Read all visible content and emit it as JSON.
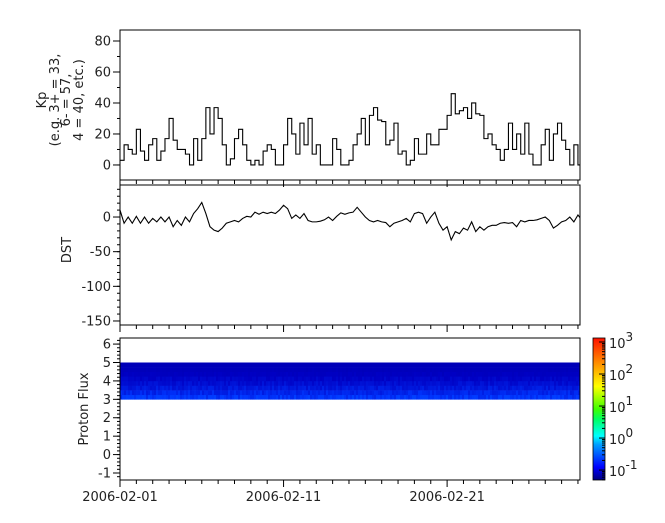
{
  "chart_data": [
    {
      "type": "line",
      "ylabel_lines": [
        "Kp",
        "(e.g. 3+ = 33,",
        "6- = 57,",
        "4 = 40, etc.)"
      ],
      "ylim": [
        -9.7,
        87.1
      ],
      "yticks": [
        0,
        20,
        40,
        60,
        80
      ],
      "series": [
        {
          "values": [
            3,
            13,
            10,
            7,
            23,
            9,
            3,
            13,
            17,
            3,
            9,
            17,
            30,
            16,
            10,
            10,
            7,
            0,
            17,
            3,
            17,
            37,
            20,
            37,
            30,
            13,
            0,
            4,
            17,
            23,
            13,
            3,
            0,
            3,
            0,
            9,
            13,
            10,
            0,
            0,
            13,
            30,
            20,
            7,
            27,
            13,
            30,
            7,
            13,
            0,
            0,
            0,
            17,
            10,
            0,
            0,
            3,
            13,
            20,
            30,
            13,
            32,
            37,
            29,
            28,
            13,
            16,
            27,
            7,
            9,
            0,
            3,
            17,
            7,
            7,
            20,
            13,
            13,
            23,
            23,
            32,
            46,
            33,
            35,
            37,
            30,
            40,
            33,
            32,
            17,
            20,
            13,
            10,
            3,
            10,
            27,
            10,
            20,
            7,
            27,
            7,
            0,
            0,
            13,
            23,
            3,
            20,
            27,
            16,
            10,
            0,
            13,
            0,
            20,
            13,
            30
          ],
          "color": "#000000",
          "style": "step"
        }
      ]
    },
    {
      "type": "line",
      "ylabel": "DST",
      "ylim": [
        -155.8,
        46.2
      ],
      "yticks": [
        0,
        -50,
        -100,
        -150
      ],
      "series": [
        {
          "values": [
            10,
            -9,
            0,
            -9,
            1,
            -9,
            0,
            -9,
            -2,
            -7,
            0,
            -7,
            0,
            -14,
            -5,
            -12,
            0,
            -7,
            5,
            12,
            21,
            5,
            -14,
            -19,
            -21,
            -16,
            -9,
            -7,
            -5,
            -7,
            -2,
            1,
            0,
            7,
            4,
            7,
            5,
            7,
            5,
            10,
            17,
            12,
            -2,
            3,
            -2,
            5,
            -5,
            -7,
            -7,
            -6,
            -4,
            0,
            -5,
            1,
            6,
            4,
            6,
            7,
            14,
            7,
            0,
            -5,
            -7,
            -5,
            -7,
            -8,
            -14,
            -9,
            -7,
            -5,
            -2,
            -7,
            5,
            7,
            5,
            -9,
            0,
            7,
            -9,
            -19,
            -14,
            -33,
            -21,
            -24,
            -16,
            -19,
            -7,
            -21,
            -14,
            -19,
            -14,
            -12,
            -12,
            -9,
            -8,
            -9,
            -8,
            -14,
            -5,
            -7,
            -5,
            -5,
            -4,
            -2,
            0,
            -5,
            -16,
            -12,
            -7,
            -5,
            0,
            -7,
            3,
            -5,
            -7,
            -9
          ],
          "color": "#000000"
        }
      ]
    },
    {
      "type": "heatmap",
      "ylabel": "Proton Flux",
      "ylim": [
        -1.38,
        6.33
      ],
      "yticks": [
        -1,
        0,
        1,
        2,
        3,
        4,
        5,
        6
      ],
      "y_band": [
        3,
        5
      ],
      "z_scale": "log",
      "z_typical_range": [
        0.08,
        0.4
      ],
      "colorbar": {
        "zlim_log10": [
          -1.31,
          3.125
        ],
        "tick_exponents": [
          -1,
          0,
          1,
          2,
          3
        ],
        "tick_base": "10",
        "colormap": "jet"
      }
    }
  ],
  "x_axis": {
    "xlim": [
      "2006-02-01",
      "2006-03-01"
    ],
    "tick_labels": [
      "2006-02-01",
      "2006-02-11",
      "2006-02-21"
    ],
    "times": [
      "2006-02-01T00",
      "2006-02-01T06",
      "2006-02-01T12",
      "2006-02-01T18",
      "2006-02-02T00",
      "2006-02-02T06",
      "2006-02-02T12",
      "2006-02-02T18",
      "2006-02-03T00",
      "2006-02-03T06",
      "2006-02-03T12",
      "2006-02-03T18",
      "2006-02-04T00",
      "2006-02-04T06",
      "2006-02-04T12",
      "2006-02-04T18",
      "2006-02-05T00",
      "2006-02-05T06",
      "2006-02-05T12",
      "2006-02-05T18",
      "2006-02-06T00",
      "2006-02-06T06",
      "2006-02-06T12",
      "2006-02-06T18",
      "2006-02-07T00",
      "2006-02-07T06",
      "2006-02-07T12",
      "2006-02-07T18",
      "2006-02-08T00",
      "2006-02-08T06",
      "2006-02-08T12",
      "2006-02-08T18",
      "2006-02-09T00",
      "2006-02-09T06",
      "2006-02-09T12",
      "2006-02-09T18",
      "2006-02-10T00",
      "2006-02-10T06",
      "2006-02-10T12",
      "2006-02-10T18",
      "2006-02-11T00",
      "2006-02-11T06",
      "2006-02-11T12",
      "2006-02-11T18",
      "2006-02-12T00",
      "2006-02-12T06",
      "2006-02-12T12",
      "2006-02-12T18",
      "2006-02-13T00",
      "2006-02-13T06",
      "2006-02-13T12",
      "2006-02-13T18",
      "2006-02-14T00",
      "2006-02-14T06",
      "2006-02-14T12",
      "2006-02-14T18",
      "2006-02-15T00",
      "2006-02-15T06",
      "2006-02-15T12",
      "2006-02-15T18",
      "2006-02-16T00",
      "2006-02-16T06",
      "2006-02-16T12",
      "2006-02-16T18",
      "2006-02-17T00",
      "2006-02-17T06",
      "2006-02-17T12",
      "2006-02-17T18",
      "2006-02-18T00",
      "2006-02-18T06",
      "2006-02-18T12",
      "2006-02-18T18",
      "2006-02-19T00",
      "2006-02-19T06",
      "2006-02-19T12",
      "2006-02-19T18",
      "2006-02-20T00",
      "2006-02-20T06",
      "2006-02-20T12",
      "2006-02-20T18",
      "2006-02-21T00",
      "2006-02-21T06",
      "2006-02-21T12",
      "2006-02-21T18",
      "2006-02-22T00",
      "2006-02-22T06",
      "2006-02-22T12",
      "2006-02-22T18",
      "2006-02-23T00",
      "2006-02-23T06",
      "2006-02-23T12",
      "2006-02-23T18",
      "2006-02-24T00",
      "2006-02-24T06",
      "2006-02-24T12",
      "2006-02-24T18",
      "2006-02-25T00",
      "2006-02-25T06",
      "2006-02-25T12",
      "2006-02-25T18",
      "2006-02-26T00",
      "2006-02-26T06",
      "2006-02-26T12",
      "2006-02-26T18",
      "2006-02-27T00",
      "2006-02-27T06",
      "2006-02-27T12",
      "2006-02-27T18",
      "2006-02-28T00",
      "2006-02-28T06",
      "2006-02-28T12",
      "2006-02-28T18",
      "2006-03-01T00",
      "2006-03-01T06",
      "2006-03-01T12",
      "2006-03-01T18"
    ]
  }
}
